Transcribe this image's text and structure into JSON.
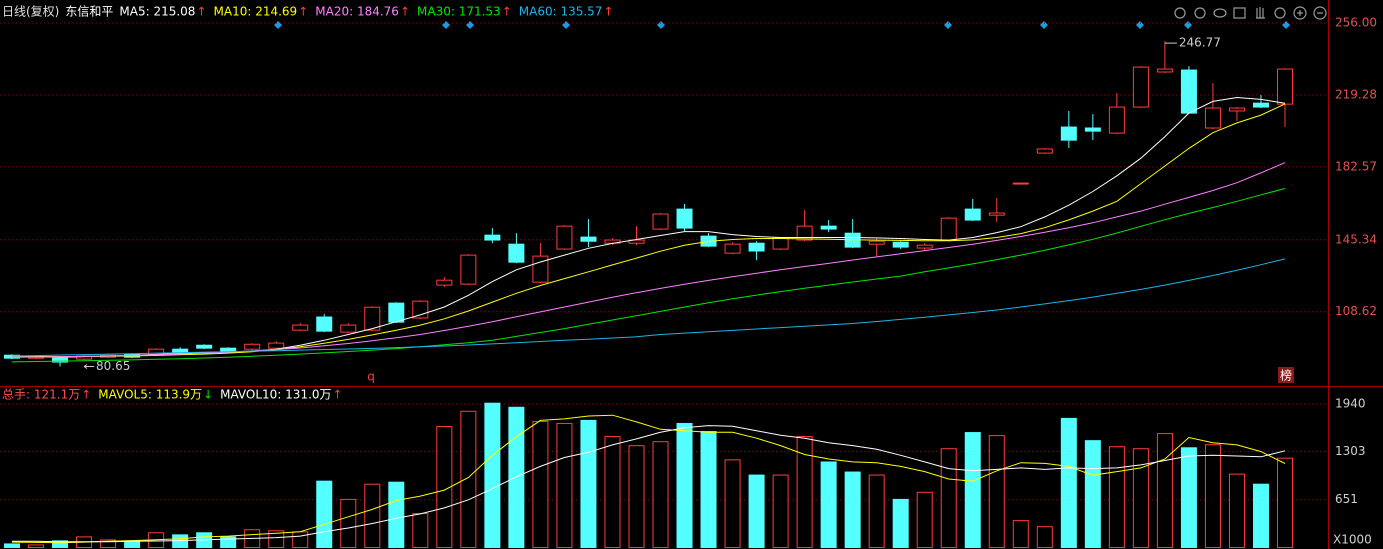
{
  "header": {
    "period": "日线(复权)",
    "stock_name": "东信和平"
  },
  "event_labels": [
    "q",
    "榜"
  ],
  "chart_data": [
    {
      "type": "candlestick",
      "up_color": "#ff3c3c",
      "down_color": "#54ffff",
      "tick_color": "#e05050",
      "ylim": [
        71.2,
        265.2
      ],
      "yticks": [
        108.62,
        145.34,
        182.57,
        219.28,
        {
          "value": 256,
          "label": "256.00"
        }
      ],
      "grid": true,
      "high_label": "246.77",
      "low_label": "80.65",
      "open": [
        86.4,
        84.9,
        84.9,
        84.4,
        85.4,
        86.9,
        86.4,
        89.5,
        91.5,
        90.0,
        89.5,
        90.0,
        99.2,
        105.9,
        98.2,
        99.2,
        113.0,
        105.4,
        122.2,
        122.7,
        147.7,
        143.1,
        123.7,
        140.6,
        146.7,
        143.6,
        143.6,
        150.8,
        161.0,
        147.2,
        138.5,
        143.6,
        140.6,
        145.2,
        152.3,
        148.7,
        143.1,
        144.1,
        141.1,
        145.2,
        161.0,
        157.9,
        174.0,
        189.6,
        202.9,
        202.4,
        199.8,
        213.1,
        231.0,
        232.0,
        202.4,
        211.1,
        215.1,
        214.6
      ],
      "high": [
        86.9,
        86.4,
        85.4,
        86.4,
        86.9,
        87.4,
        90.0,
        90.5,
        92.0,
        90.5,
        92.5,
        93.6,
        102.8,
        107.4,
        102.8,
        111.4,
        113.5,
        114.5,
        126.3,
        138.0,
        151.3,
        148.7,
        143.6,
        152.8,
        155.9,
        146.2,
        152.3,
        159.0,
        163.6,
        148.7,
        144.1,
        144.6,
        146.7,
        160.5,
        155.4,
        155.9,
        146.2,
        144.6,
        143.6,
        156.9,
        166.2,
        166.7,
        174.3,
        192.2,
        211.1,
        209.5,
        220.3,
        234.0,
        246.77,
        234.0,
        225.4,
        213.1,
        219.3,
        233.0
      ],
      "low": [
        84.4,
        84.4,
        80.65,
        83.9,
        84.9,
        84.9,
        85.9,
        87.4,
        89.5,
        88.0,
        89.0,
        89.5,
        98.7,
        98.2,
        97.7,
        98.7,
        102.8,
        104.9,
        121.2,
        122.2,
        143.6,
        133.4,
        123.2,
        140.1,
        141.6,
        142.6,
        142.6,
        150.3,
        149.7,
        141.6,
        138.0,
        134.9,
        140.1,
        144.6,
        149.2,
        141.1,
        137.0,
        140.6,
        139.6,
        144.6,
        154.9,
        154.4,
        174.0,
        189.1,
        192.2,
        196.2,
        199.3,
        212.6,
        230.5,
        209.5,
        201.9,
        206.0,
        212.6,
        202.9
      ],
      "close": [
        84.9,
        85.9,
        82.9,
        85.9,
        86.4,
        85.4,
        89.5,
        88.0,
        90.0,
        88.5,
        92.0,
        92.6,
        101.8,
        98.7,
        101.8,
        110.9,
        103.3,
        114.0,
        124.7,
        137.5,
        145.2,
        133.9,
        137.0,
        152.3,
        144.6,
        145.2,
        145.2,
        158.5,
        151.3,
        142.1,
        143.1,
        139.6,
        146.2,
        152.3,
        150.8,
        141.6,
        144.6,
        141.6,
        142.6,
        156.4,
        155.4,
        159.0,
        174.3,
        191.7,
        196.2,
        200.8,
        213.1,
        233.5,
        232.5,
        210.0,
        212.6,
        212.6,
        213.1,
        232.5
      ],
      "lines": [
        {
          "legend": "MA5: 215.08",
          "arrow": "↑",
          "arrow_color": "#ff3c3c",
          "color": "#ffffff",
          "values": [
            85.5,
            85.6,
            85.4,
            85.7,
            86,
            86.3,
            86.8,
            87.3,
            87.6,
            87.9,
            88.5,
            89.5,
            91.5,
            94,
            97,
            100,
            103.5,
            107,
            111,
            117,
            124,
            130,
            134,
            137.5,
            141,
            143.5,
            145.5,
            147.5,
            149.5,
            149.5,
            148,
            147,
            146.5,
            146.5,
            146.5,
            146.5,
            146.3,
            146,
            145.5,
            145.2,
            146.5,
            149,
            152,
            157,
            163,
            170,
            178,
            187,
            198,
            210,
            216,
            218,
            217,
            215.08
          ]
        },
        {
          "legend": "MA10: 214.69",
          "arrow": "↑",
          "arrow_color": "#ff3c3c",
          "color": "#ffff00",
          "values": [
            85.8,
            85.8,
            85.7,
            85.8,
            85.9,
            86,
            86.3,
            86.6,
            87,
            87.5,
            88.2,
            89.2,
            90.7,
            92.5,
            94.5,
            96.8,
            99.2,
            101.8,
            105,
            109,
            113.5,
            118,
            122,
            125.5,
            129,
            132.5,
            136,
            139.5,
            142.5,
            144.5,
            145.5,
            146,
            146,
            145.8,
            145.6,
            145.4,
            145.2,
            145,
            144.8,
            144.8,
            145.3,
            146.5,
            148.5,
            151.5,
            155.5,
            160,
            165,
            174,
            183,
            192,
            200,
            205,
            209,
            214.69
          ]
        },
        {
          "legend": "MA20: 184.76",
          "arrow": "↑",
          "arrow_color": "#ff3c3c",
          "color": "#ff80ff",
          "values": [
            85.4,
            85.5,
            85.6,
            85.8,
            86.0,
            86.3,
            86.6,
            87.0,
            87.5,
            88.0,
            88.6,
            89.3,
            90.1,
            91.2,
            92.4,
            93.8,
            95.3,
            97,
            99,
            101.2,
            103.5,
            106,
            108.5,
            111,
            113.5,
            116,
            118.3,
            120.5,
            122.6,
            124.6,
            126.5,
            128.3,
            130,
            131.7,
            133.3,
            135,
            136.6,
            138.2,
            139.8,
            141.4,
            143.1,
            145,
            147,
            149.2,
            151.5,
            154,
            157,
            160,
            163.5,
            167,
            170.5,
            174.5,
            179.5,
            184.76
          ]
        },
        {
          "legend": "MA30: 171.53",
          "arrow": "↑",
          "arrow_color": "#ff3c3c",
          "color": "#00e600",
          "values": [
            83.0,
            83.2,
            83.4,
            83.6,
            83.8,
            84.0,
            84.3,
            84.6,
            85.0,
            85.4,
            85.9,
            86.4,
            87.0,
            87.6,
            88.3,
            89.0,
            89.8,
            90.7,
            91.7,
            92.8,
            94.0,
            96,
            98,
            100,
            102.2,
            104.4,
            106.6,
            108.8,
            111,
            113.2,
            115.2,
            117.1,
            118.9,
            120.6,
            122.2,
            123.8,
            125.3,
            126.8,
            129,
            131,
            133,
            135.2,
            137.5,
            140,
            142.7,
            145.6,
            148.8,
            152.2,
            155.6,
            158.8,
            161.8,
            165,
            168.3,
            171.53
          ]
        },
        {
          "legend": "MA60: 135.57",
          "arrow": "↑",
          "arrow_color": "#ff3c3c",
          "color": "#1fb4e6",
          "values": [
            86.0,
            86.2,
            86.5,
            86.7,
            87.0,
            87.2,
            87.5,
            87.7,
            88.0,
            88.2,
            88.5,
            88.7,
            89.0,
            89.3,
            89.6,
            89.9,
            90.3,
            90.7,
            91.1,
            91.6,
            92.2,
            92.8,
            93.4,
            94.0,
            94.6,
            95.2,
            95.8,
            97,
            97.7,
            98.4,
            99.1,
            99.8,
            100.5,
            101.2,
            101.9,
            102.6,
            103.6,
            104.7,
            105.8,
            107.0,
            108.2,
            109.5,
            111,
            112.6,
            114.3,
            116.1,
            118,
            120,
            122.2,
            124.6,
            127.1,
            129.8,
            132.6,
            135.57
          ]
        }
      ]
    },
    {
      "type": "bar",
      "tick_color": "#d0d0d0",
      "unit_label": "X1000",
      "ylim": [
        0,
        2022
      ],
      "yticks": [
        651,
        1303,
        1940
      ],
      "grid": true,
      "total": {
        "legend": "总手: 121.1万",
        "arrow": "↑",
        "arrow_color": "#ff3c3c",
        "color": "#ff5050"
      },
      "values": [
        55,
        41,
        96,
        150,
        109,
        96,
        205,
        177,
        205,
        150,
        246,
        232,
        218,
        901,
        655,
        860,
        887,
        464,
        1638,
        1843,
        1952,
        1897,
        1706,
        1679,
        1720,
        1502,
        1379,
        1433,
        1679,
        1570,
        1188,
        983,
        983,
        1502,
        1160,
        1024,
        983,
        655,
        751,
        1338,
        1556,
        1515,
        369,
        287,
        1747,
        1447,
        1365,
        1338,
        1542,
        1351,
        1392,
        996,
        860,
        1211
      ],
      "lines": [
        {
          "legend": "MAVOL5: 113.9万",
          "arrow": "↓",
          "arrow_color": "#00e600",
          "color": "#ffff00",
          "values": [
            80,
            75,
            70,
            80,
            90,
            100,
            110,
            125,
            150,
            160,
            180,
            200,
            220,
            320,
            420,
            520,
            640,
            700,
            780,
            950,
            1250,
            1500,
            1720,
            1740,
            1780,
            1790,
            1700,
            1600,
            1580,
            1560,
            1560,
            1480,
            1380,
            1260,
            1200,
            1160,
            1150,
            1100,
            1030,
            930,
            900,
            1040,
            1150,
            1140,
            1100,
            980,
            1030,
            1080,
            1200,
            1490,
            1420,
            1390,
            1300,
            1139
          ]
        },
        {
          "legend": "MAVOL10: 131.0万",
          "arrow": "↑",
          "arrow_color": "#ff3c3c",
          "color": "#ffffff",
          "values": [
            90,
            90,
            85,
            85,
            85,
            90,
            95,
            100,
            110,
            120,
            130,
            140,
            160,
            220,
            270,
            330,
            400,
            460,
            540,
            650,
            800,
            960,
            1100,
            1220,
            1290,
            1390,
            1470,
            1560,
            1620,
            1650,
            1640,
            1580,
            1520,
            1480,
            1420,
            1380,
            1330,
            1250,
            1160,
            1070,
            1040,
            1060,
            1080,
            1060,
            1080,
            1070,
            1080,
            1120,
            1180,
            1240,
            1250,
            1240,
            1230,
            1310
          ]
        }
      ]
    }
  ]
}
